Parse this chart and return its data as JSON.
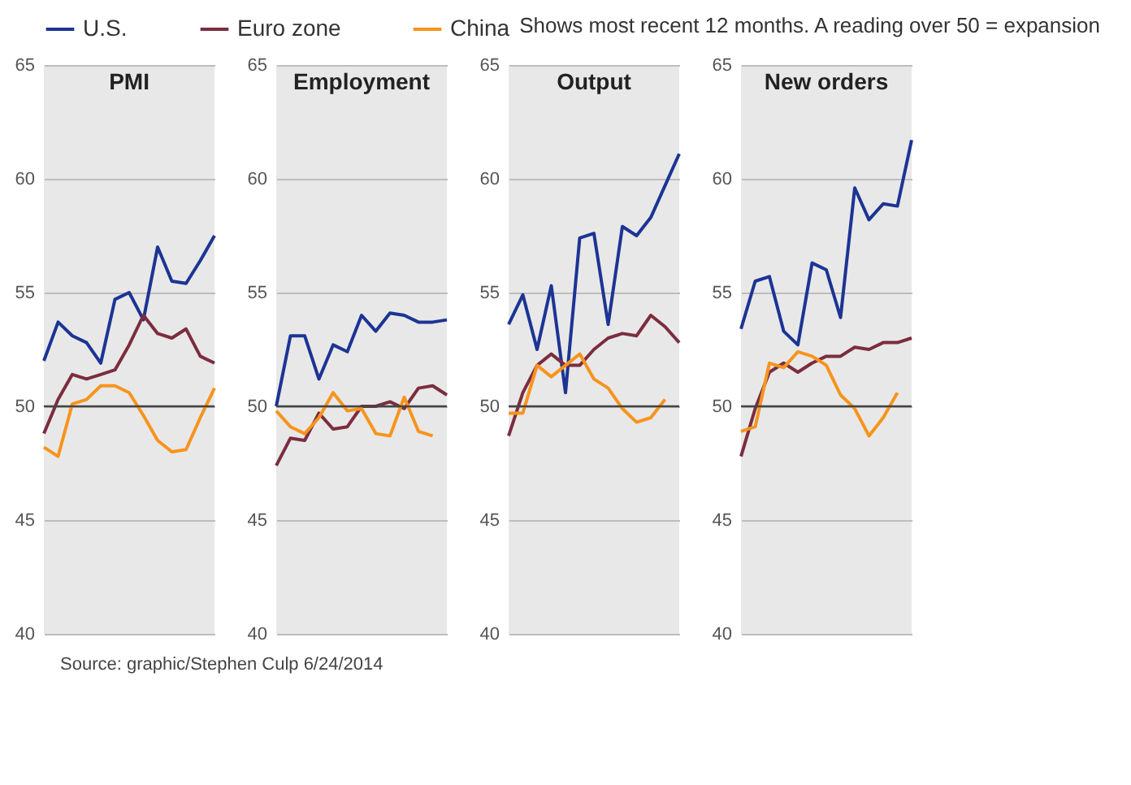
{
  "chart_data": [
    {
      "type": "line",
      "title": "PMI",
      "categories": [
        null,
        null,
        null,
        null,
        null,
        null,
        null,
        null,
        null,
        null,
        null,
        null,
        null
      ],
      "ylim": [
        40,
        65
      ],
      "yticks": [
        40,
        45,
        50,
        55,
        60,
        65
      ],
      "grid": "y",
      "tick_labels": "y",
      "legend": "top",
      "line_style": "solid",
      "ref_lines": [
        {
          "axis": "y",
          "value": 50,
          "color": "#444444"
        }
      ],
      "annotations": [
        "Shows most recent 12 months. A reading over 50 = expansion",
        "Source: graphic/Stephen Culp 6/24/2014"
      ],
      "series": [
        {
          "name": "U.S.",
          "color": "#1c3494",
          "values": [
            52.0,
            53.7,
            53.1,
            52.8,
            51.9,
            54.7,
            55.0,
            53.8,
            57.0,
            55.5,
            55.4,
            56.4,
            57.5
          ]
        },
        {
          "name": "Euro zone",
          "color": "#7b2d3e",
          "values": [
            48.8,
            50.3,
            51.4,
            51.2,
            51.4,
            51.6,
            52.7,
            54.0,
            53.2,
            53.0,
            53.4,
            52.2,
            51.9
          ]
        },
        {
          "name": "China",
          "color": "#f7941d",
          "values": [
            48.2,
            47.8,
            50.1,
            50.3,
            50.9,
            50.9,
            50.6,
            49.6,
            48.5,
            48.0,
            48.1,
            49.5,
            50.8
          ]
        }
      ]
    },
    {
      "type": "line",
      "title": "Employment",
      "categories": [
        null,
        null,
        null,
        null,
        null,
        null,
        null,
        null,
        null,
        null,
        null,
        null,
        null
      ],
      "ylim": [
        40,
        65
      ],
      "yticks": [
        40,
        45,
        50,
        55,
        60,
        65
      ],
      "grid": "y",
      "tick_labels": "y",
      "line_style": "solid",
      "ref_lines": [
        {
          "axis": "y",
          "value": 50,
          "color": "#444444"
        }
      ],
      "series": [
        {
          "color": "#1c3494",
          "values": [
            50.0,
            53.1,
            53.1,
            51.2,
            52.7,
            52.4,
            54.0,
            53.3,
            54.1,
            54.0,
            53.7,
            53.7,
            53.8
          ]
        },
        {
          "color": "#7b2d3e",
          "values": [
            47.4,
            48.6,
            48.5,
            49.7,
            49.0,
            49.1,
            50.0,
            50.0,
            50.2,
            49.9,
            50.8,
            50.9,
            50.5
          ]
        },
        {
          "color": "#f7941d",
          "values": [
            49.8,
            49.1,
            48.8,
            49.5,
            50.6,
            49.8,
            49.9,
            48.8,
            48.7,
            50.4,
            48.9,
            48.7,
            null
          ]
        }
      ]
    },
    {
      "type": "line",
      "title": "Output",
      "categories": [
        null,
        null,
        null,
        null,
        null,
        null,
        null,
        null,
        null,
        null,
        null,
        null,
        null
      ],
      "ylim": [
        40,
        65
      ],
      "yticks": [
        40,
        45,
        50,
        55,
        60,
        65
      ],
      "grid": "y",
      "tick_labels": "y",
      "line_style": "solid",
      "ref_lines": [
        {
          "axis": "y",
          "value": 50,
          "color": "#444444"
        }
      ],
      "series": [
        {
          "color": "#1c3494",
          "values": [
            53.6,
            54.9,
            52.5,
            55.3,
            50.6,
            57.4,
            57.6,
            53.6,
            57.9,
            57.5,
            58.3,
            59.7,
            61.1
          ]
        },
        {
          "color": "#7b2d3e",
          "values": [
            48.7,
            50.6,
            51.8,
            52.3,
            51.8,
            51.8,
            52.5,
            53.0,
            53.2,
            53.1,
            54.0,
            53.5,
            52.8
          ]
        },
        {
          "color": "#f7941d",
          "values": [
            49.7,
            49.7,
            51.8,
            51.3,
            51.8,
            52.3,
            51.2,
            50.8,
            49.9,
            49.3,
            49.5,
            50.3,
            null
          ]
        }
      ]
    },
    {
      "type": "line",
      "title": "New orders",
      "categories": [
        null,
        null,
        null,
        null,
        null,
        null,
        null,
        null,
        null,
        null,
        null,
        null,
        null
      ],
      "ylim": [
        40,
        65
      ],
      "yticks": [
        40,
        45,
        50,
        55,
        60,
        65
      ],
      "grid": "y",
      "tick_labels": "y",
      "line_style": "solid",
      "ref_lines": [
        {
          "axis": "y",
          "value": 50,
          "color": "#444444"
        }
      ],
      "series": [
        {
          "color": "#1c3494",
          "values": [
            53.4,
            55.5,
            55.7,
            53.3,
            52.7,
            56.3,
            56.0,
            53.9,
            59.6,
            58.2,
            58.9,
            58.8,
            61.7
          ]
        },
        {
          "color": "#7b2d3e",
          "values": [
            47.8,
            49.9,
            51.5,
            51.9,
            51.5,
            51.9,
            52.2,
            52.2,
            52.6,
            52.5,
            52.8,
            52.8,
            53.0
          ]
        },
        {
          "color": "#f7941d",
          "values": [
            48.9,
            49.1,
            51.9,
            51.7,
            52.4,
            52.2,
            51.8,
            50.5,
            49.9,
            48.7,
            49.5,
            50.6,
            null
          ]
        }
      ]
    }
  ]
}
